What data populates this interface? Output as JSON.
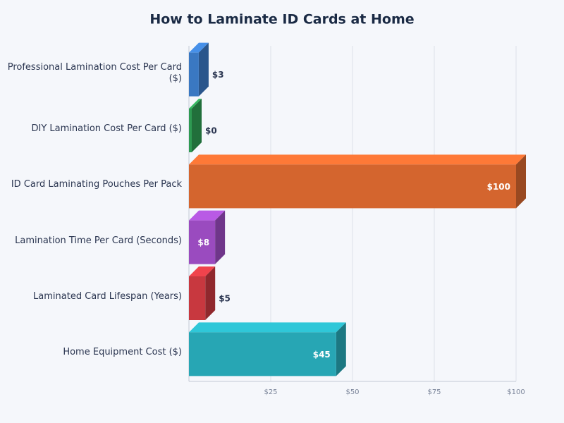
{
  "chart_data": {
    "type": "bar3d-horizontal",
    "title": "How to Laminate ID Cards at Home",
    "categories": [
      "Professional Lamination Cost Per Card ($)",
      "DIY Lamination Cost Per Card ($)",
      "ID Card Laminating Pouches Per Pack",
      "Lamination Time Per Card (Seconds)",
      "Laminated Card Lifespan (Years)",
      "Home Equipment Cost ($)"
    ],
    "values": [
      3,
      0,
      100,
      8,
      5,
      45
    ],
    "value_labels": [
      "$3",
      "$0",
      "$100",
      "$8",
      "$5",
      "$45"
    ],
    "colors": [
      "#3a78c2",
      "#2e9a52",
      "#d4652e",
      "#9a4bbf",
      "#c8383f",
      "#27a6b4"
    ],
    "xlim": [
      0,
      100
    ],
    "xticks": [
      {
        "value": 25,
        "label": "$25"
      },
      {
        "value": 50,
        "label": "$50"
      },
      {
        "value": 75,
        "label": "$75"
      },
      {
        "value": 100,
        "label": "$100"
      }
    ],
    "grid": true
  }
}
